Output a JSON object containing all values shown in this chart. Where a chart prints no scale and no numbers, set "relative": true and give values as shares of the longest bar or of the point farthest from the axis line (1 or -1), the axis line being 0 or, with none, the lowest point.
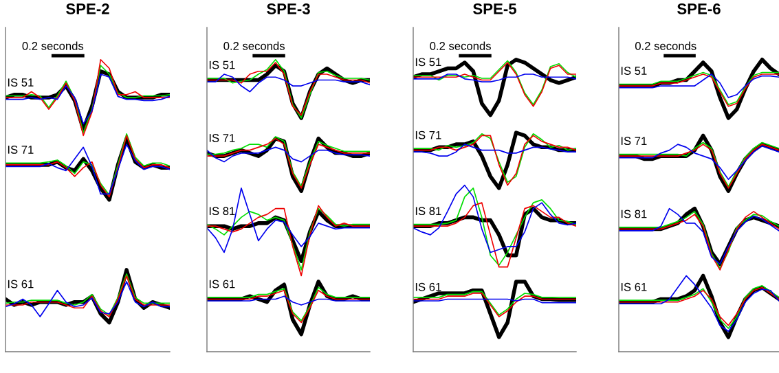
{
  "chart_data": [
    {
      "type": "line",
      "title": "SPE-2",
      "relative": true,
      "categories": [
        null,
        null,
        null,
        null,
        null,
        null,
        null,
        null,
        null,
        null,
        null,
        null,
        null,
        null,
        null,
        null,
        null,
        null,
        null,
        null
      ],
      "annotations": [
        "0.2 seconds",
        "IS 51",
        "IS 71",
        "IS 61"
      ],
      "series": [
        {
          "color": "#000000",
          "values": [
            0.87,
            0.88,
            0.88,
            0.87,
            0.87,
            0.87,
            0.88,
            0.91,
            0.86,
            0.76,
            0.84,
            0.96,
            0.95,
            0.89,
            0.87,
            0.87,
            0.87,
            0.87,
            0.88,
            0.88
          ]
        },
        {
          "color": "#00dd00",
          "values": [
            0.876,
            0.876,
            0.876,
            0.88,
            0.876,
            0.836,
            0.876,
            0.926,
            0.866,
            0.75,
            0.83,
            0.98,
            0.95,
            0.886,
            0.87,
            0.87,
            0.876,
            0.876,
            0.876,
            0.88
          ]
        },
        {
          "color": "#ee0000",
          "values": [
            0.87,
            0.87,
            0.87,
            0.89,
            0.87,
            0.83,
            0.87,
            0.92,
            0.86,
            0.74,
            0.82,
            1.0,
            0.97,
            0.88,
            0.88,
            0.89,
            0.87,
            0.87,
            0.87,
            0.87
          ]
        },
        {
          "color": "#0000ee",
          "values": [
            0.864,
            0.864,
            0.864,
            0.87,
            0.864,
            0.87,
            0.864,
            0.91,
            0.87,
            0.78,
            0.824,
            0.95,
            0.94,
            0.874,
            0.864,
            0.864,
            0.86,
            0.86,
            0.864,
            0.874
          ]
        },
        {
          "color": "#000000",
          "values": [
            0.64,
            0.64,
            0.64,
            0.64,
            0.64,
            0.64,
            0.65,
            0.63,
            0.62,
            0.66,
            0.62,
            0.56,
            0.52,
            0.64,
            0.73,
            0.65,
            0.63,
            0.64,
            0.63,
            0.63
          ]
        },
        {
          "color": "#00dd00",
          "values": [
            0.646,
            0.646,
            0.646,
            0.646,
            0.646,
            0.65,
            0.656,
            0.636,
            0.61,
            0.65,
            0.64,
            0.576,
            0.536,
            0.64,
            0.746,
            0.666,
            0.636,
            0.646,
            0.646,
            0.636
          ]
        },
        {
          "color": "#ee0000",
          "values": [
            0.64,
            0.64,
            0.64,
            0.64,
            0.64,
            0.64,
            0.65,
            0.63,
            0.6,
            0.63,
            0.65,
            0.57,
            0.53,
            0.63,
            0.74,
            0.66,
            0.63,
            0.64,
            0.64,
            0.63
          ]
        },
        {
          "color": "#0000ee",
          "values": [
            0.634,
            0.634,
            0.634,
            0.634,
            0.634,
            0.644,
            0.63,
            0.62,
            0.66,
            0.7,
            0.634,
            0.54,
            0.54,
            0.624,
            0.71,
            0.654,
            0.624,
            0.634,
            0.634,
            0.624
          ]
        },
        {
          "color": "#000000",
          "values": [
            0.18,
            0.16,
            0.17,
            0.16,
            0.17,
            0.17,
            0.17,
            0.16,
            0.17,
            0.17,
            0.19,
            0.13,
            0.1,
            0.17,
            0.28,
            0.18,
            0.15,
            0.17,
            0.16,
            0.15
          ]
        },
        {
          "color": "#00dd00",
          "values": [
            0.166,
            0.17,
            0.17,
            0.176,
            0.176,
            0.176,
            0.176,
            0.166,
            0.16,
            0.17,
            0.196,
            0.146,
            0.126,
            0.186,
            0.266,
            0.186,
            0.166,
            0.166,
            0.166,
            0.166
          ]
        },
        {
          "color": "#ee0000",
          "values": [
            0.16,
            0.16,
            0.16,
            0.17,
            0.17,
            0.17,
            0.17,
            0.16,
            0.15,
            0.15,
            0.19,
            0.14,
            0.12,
            0.18,
            0.26,
            0.18,
            0.16,
            0.16,
            0.16,
            0.16
          ]
        },
        {
          "color": "#0000ee",
          "values": [
            0.154,
            0.164,
            0.18,
            0.16,
            0.12,
            0.164,
            0.21,
            0.17,
            0.154,
            0.16,
            0.184,
            0.134,
            0.13,
            0.17,
            0.24,
            0.17,
            0.154,
            0.17,
            0.154,
            0.154
          ]
        }
      ]
    },
    {
      "type": "line",
      "title": "SPE-3",
      "relative": true,
      "categories": [
        null,
        null,
        null,
        null,
        null,
        null,
        null,
        null,
        null,
        null,
        null,
        null,
        null,
        null,
        null,
        null,
        null,
        null,
        null,
        null
      ],
      "annotations": [
        "0.2 seconds",
        "IS 51",
        "IS 71",
        "IS 81",
        "IS 61"
      ],
      "series": [
        {
          "color": "#000000",
          "values": [
            0.93,
            0.93,
            0.93,
            0.93,
            0.93,
            0.93,
            0.93,
            0.95,
            0.98,
            0.96,
            0.85,
            0.8,
            0.89,
            0.95,
            0.97,
            0.95,
            0.93,
            0.92,
            0.93,
            0.93
          ]
        },
        {
          "color": "#00dd00",
          "values": [
            0.936,
            0.936,
            0.936,
            0.92,
            0.926,
            0.93,
            0.95,
            0.966,
            1.0,
            0.96,
            0.846,
            0.8,
            0.88,
            0.956,
            0.96,
            0.946,
            0.936,
            0.936,
            0.936,
            0.93
          ]
        },
        {
          "color": "#ee0000",
          "values": [
            0.93,
            0.93,
            0.93,
            0.93,
            0.92,
            0.95,
            0.96,
            0.96,
            0.99,
            0.95,
            0.84,
            0.81,
            0.89,
            0.95,
            0.95,
            0.94,
            0.93,
            0.93,
            0.93,
            0.92
          ]
        },
        {
          "color": "#0000ee",
          "values": [
            0.924,
            0.924,
            0.95,
            0.94,
            0.91,
            0.89,
            0.92,
            0.94,
            0.94,
            0.93,
            0.91,
            0.91,
            0.92,
            0.93,
            0.93,
            0.93,
            0.924,
            0.924,
            0.924,
            0.914
          ]
        },
        {
          "color": "#000000",
          "values": [
            0.68,
            0.67,
            0.67,
            0.68,
            0.69,
            0.68,
            0.67,
            0.69,
            0.73,
            0.72,
            0.6,
            0.55,
            0.65,
            0.73,
            0.7,
            0.68,
            0.68,
            0.67,
            0.67,
            0.68
          ]
        },
        {
          "color": "#00dd00",
          "values": [
            0.676,
            0.676,
            0.68,
            0.69,
            0.696,
            0.71,
            0.71,
            0.7,
            0.736,
            0.72,
            0.616,
            0.566,
            0.65,
            0.72,
            0.706,
            0.696,
            0.686,
            0.686,
            0.686,
            0.686
          ]
        },
        {
          "color": "#ee0000",
          "values": [
            0.67,
            0.67,
            0.67,
            0.68,
            0.69,
            0.69,
            0.7,
            0.71,
            0.73,
            0.71,
            0.61,
            0.56,
            0.64,
            0.71,
            0.7,
            0.69,
            0.68,
            0.68,
            0.68,
            0.68
          ]
        },
        {
          "color": "#0000ee",
          "values": [
            0.69,
            0.664,
            0.65,
            0.67,
            0.68,
            0.68,
            0.68,
            0.69,
            0.7,
            0.69,
            0.66,
            0.65,
            0.67,
            0.69,
            0.69,
            0.68,
            0.674,
            0.674,
            0.674,
            0.67
          ]
        },
        {
          "color": "#000000",
          "values": [
            0.43,
            0.43,
            0.43,
            0.42,
            0.43,
            0.43,
            0.44,
            0.44,
            0.46,
            0.45,
            0.38,
            0.31,
            0.41,
            0.48,
            0.45,
            0.43,
            0.43,
            0.43,
            0.43,
            0.43
          ]
        },
        {
          "color": "#00dd00",
          "values": [
            0.436,
            0.42,
            0.4,
            0.43,
            0.46,
            0.48,
            0.47,
            0.45,
            0.46,
            0.45,
            0.366,
            0.28,
            0.41,
            0.49,
            0.466,
            0.436,
            0.43,
            0.436,
            0.436,
            0.436
          ]
        },
        {
          "color": "#ee0000",
          "values": [
            0.43,
            0.43,
            0.42,
            0.41,
            0.42,
            0.44,
            0.46,
            0.47,
            0.49,
            0.49,
            0.36,
            0.26,
            0.4,
            0.5,
            0.46,
            0.43,
            0.44,
            0.43,
            0.43,
            0.43
          ]
        },
        {
          "color": "#0000ee",
          "values": [
            0.424,
            0.39,
            0.34,
            0.42,
            0.56,
            0.47,
            0.38,
            0.42,
            0.45,
            0.444,
            0.4,
            0.36,
            0.394,
            0.44,
            0.43,
            0.42,
            0.424,
            0.424,
            0.424,
            0.424
          ]
        },
        {
          "color": "#000000",
          "values": [
            0.18,
            0.18,
            0.18,
            0.18,
            0.18,
            0.19,
            0.18,
            0.17,
            0.21,
            0.23,
            0.11,
            0.06,
            0.16,
            0.24,
            0.19,
            0.18,
            0.18,
            0.19,
            0.18,
            0.18
          ]
        },
        {
          "color": "#00dd00",
          "values": [
            0.186,
            0.186,
            0.186,
            0.186,
            0.186,
            0.186,
            0.196,
            0.196,
            0.206,
            0.216,
            0.136,
            0.106,
            0.156,
            0.22,
            0.196,
            0.186,
            0.186,
            0.186,
            0.186,
            0.186
          ]
        },
        {
          "color": "#ee0000",
          "values": [
            0.18,
            0.18,
            0.18,
            0.18,
            0.18,
            0.18,
            0.19,
            0.19,
            0.2,
            0.21,
            0.13,
            0.1,
            0.15,
            0.21,
            0.19,
            0.18,
            0.18,
            0.18,
            0.18,
            0.18
          ]
        },
        {
          "color": "#0000ee",
          "values": [
            0.174,
            0.174,
            0.174,
            0.174,
            0.174,
            0.174,
            0.18,
            0.18,
            0.18,
            0.19,
            0.17,
            0.16,
            0.17,
            0.18,
            0.18,
            0.174,
            0.174,
            0.174,
            0.174,
            0.174
          ]
        }
      ]
    },
    {
      "type": "line",
      "title": "SPE-5",
      "relative": true,
      "categories": [
        null,
        null,
        null,
        null,
        null,
        null,
        null,
        null,
        null,
        null,
        null,
        null,
        null,
        null,
        null,
        null,
        null,
        null,
        null,
        null
      ],
      "annotations": [
        "0.2 seconds",
        "IS 51",
        "IS 71",
        "IS 81",
        "IS 61"
      ],
      "series": [
        {
          "color": "#000000",
          "values": [
            0.94,
            0.95,
            0.95,
            0.96,
            0.97,
            0.97,
            0.99,
            0.96,
            0.85,
            0.81,
            0.86,
            0.98,
            1.0,
            0.99,
            0.97,
            0.95,
            0.93,
            0.92,
            0.93,
            0.94
          ]
        },
        {
          "color": "#00dd00",
          "values": [
            0.946,
            0.946,
            0.946,
            0.93,
            0.946,
            0.946,
            0.94,
            0.946,
            0.936,
            0.936,
            0.966,
            0.996,
            0.956,
            0.886,
            0.846,
            0.896,
            0.976,
            0.986,
            0.956,
            0.94
          ]
        },
        {
          "color": "#ee0000",
          "values": [
            0.94,
            0.94,
            0.94,
            0.94,
            0.94,
            0.94,
            0.95,
            0.94,
            0.93,
            0.93,
            0.96,
            0.99,
            0.95,
            0.88,
            0.84,
            0.89,
            0.97,
            0.98,
            0.95,
            0.95
          ]
        },
        {
          "color": "#0000ee",
          "values": [
            0.934,
            0.934,
            0.934,
            0.934,
            0.95,
            0.95,
            0.934,
            0.93,
            0.924,
            0.924,
            0.93,
            0.94,
            0.94,
            0.95,
            0.95,
            0.94,
            0.94,
            0.94,
            0.94,
            0.934
          ]
        },
        {
          "color": "#000000",
          "values": [
            0.69,
            0.69,
            0.69,
            0.7,
            0.7,
            0.71,
            0.71,
            0.72,
            0.67,
            0.6,
            0.56,
            0.64,
            0.75,
            0.74,
            0.71,
            0.7,
            0.7,
            0.69,
            0.69,
            0.69
          ]
        },
        {
          "color": "#00dd00",
          "values": [
            0.696,
            0.696,
            0.696,
            0.69,
            0.706,
            0.7,
            0.706,
            0.716,
            0.746,
            0.73,
            0.65,
            0.58,
            0.6,
            0.7,
            0.746,
            0.726,
            0.7,
            0.706,
            0.69,
            0.696
          ]
        },
        {
          "color": "#ee0000",
          "values": [
            0.69,
            0.69,
            0.69,
            0.7,
            0.7,
            0.69,
            0.7,
            0.71,
            0.74,
            0.74,
            0.64,
            0.57,
            0.61,
            0.71,
            0.74,
            0.72,
            0.71,
            0.7,
            0.7,
            0.69
          ]
        },
        {
          "color": "#0000ee",
          "values": [
            0.684,
            0.684,
            0.68,
            0.67,
            0.67,
            0.684,
            0.71,
            0.7,
            0.69,
            0.69,
            0.69,
            0.68,
            0.68,
            0.69,
            0.7,
            0.7,
            0.694,
            0.69,
            0.684,
            0.684
          ]
        },
        {
          "color": "#000000",
          "values": [
            0.43,
            0.43,
            0.43,
            0.44,
            0.44,
            0.45,
            0.46,
            0.46,
            0.45,
            0.45,
            0.4,
            0.33,
            0.33,
            0.47,
            0.49,
            0.46,
            0.45,
            0.45,
            0.44,
            0.44
          ]
        },
        {
          "color": "#00dd00",
          "values": [
            0.436,
            0.436,
            0.436,
            0.436,
            0.44,
            0.45,
            0.53,
            0.56,
            0.46,
            0.33,
            0.296,
            0.34,
            0.4,
            0.46,
            0.51,
            0.52,
            0.49,
            0.45,
            0.446,
            0.436
          ]
        },
        {
          "color": "#ee0000",
          "values": [
            0.43,
            0.43,
            0.43,
            0.43,
            0.43,
            0.44,
            0.46,
            0.5,
            0.51,
            0.4,
            0.29,
            0.29,
            0.39,
            0.49,
            0.5,
            0.48,
            0.46,
            0.46,
            0.44,
            0.43
          ]
        },
        {
          "color": "#0000ee",
          "values": [
            0.424,
            0.41,
            0.4,
            0.424,
            0.48,
            0.54,
            0.57,
            0.53,
            0.42,
            0.34,
            0.35,
            0.36,
            0.36,
            0.41,
            0.49,
            0.51,
            0.47,
            0.44,
            0.434,
            0.44
          ]
        },
        {
          "color": "#000000",
          "values": [
            0.17,
            0.18,
            0.19,
            0.2,
            0.2,
            0.2,
            0.2,
            0.21,
            0.21,
            0.13,
            0.05,
            0.1,
            0.24,
            0.24,
            0.19,
            0.18,
            0.18,
            0.177,
            0.177,
            0.177
          ]
        },
        {
          "color": "#00dd00",
          "values": [
            0.186,
            0.186,
            0.186,
            0.186,
            0.196,
            0.196,
            0.196,
            0.206,
            0.206,
            0.166,
            0.126,
            0.146,
            0.18,
            0.2,
            0.196,
            0.186,
            0.186,
            0.186,
            0.186,
            0.186
          ]
        },
        {
          "color": "#ee0000",
          "values": [
            0.18,
            0.18,
            0.18,
            0.18,
            0.19,
            0.19,
            0.19,
            0.2,
            0.2,
            0.16,
            0.12,
            0.14,
            0.17,
            0.19,
            0.19,
            0.18,
            0.18,
            0.18,
            0.18,
            0.18
          ]
        },
        {
          "color": "#0000ee",
          "values": [
            0.174,
            0.174,
            0.174,
            0.174,
            0.18,
            0.18,
            0.18,
            0.18,
            0.18,
            0.18,
            0.18,
            0.18,
            0.174,
            0.18,
            0.18,
            0.168,
            0.168,
            0.168,
            0.168,
            0.168
          ]
        }
      ]
    },
    {
      "type": "line",
      "title": "SPE-6",
      "relative": true,
      "categories": [
        null,
        null,
        null,
        null,
        null,
        null,
        null,
        null,
        null,
        null,
        null,
        null,
        null,
        null,
        null,
        null,
        null,
        null,
        null,
        null
      ],
      "annotations": [
        "0.2 seconds",
        "IS 51",
        "IS 71",
        "IS 81",
        "IS 61"
      ],
      "series": [
        {
          "color": "#000000",
          "values": [
            0.91,
            0.91,
            0.91,
            0.91,
            0.91,
            0.92,
            0.92,
            0.93,
            0.93,
            0.96,
            0.99,
            0.96,
            0.87,
            0.8,
            0.83,
            0.9,
            0.96,
            1.0,
            0.97,
            0.95
          ]
        },
        {
          "color": "#00dd00",
          "values": [
            0.916,
            0.916,
            0.916,
            0.916,
            0.916,
            0.926,
            0.926,
            0.926,
            0.936,
            0.946,
            0.956,
            0.946,
            0.896,
            0.846,
            0.856,
            0.906,
            0.946,
            0.956,
            0.956,
            0.956
          ]
        },
        {
          "color": "#ee0000",
          "values": [
            0.91,
            0.91,
            0.91,
            0.91,
            0.91,
            0.92,
            0.92,
            0.92,
            0.93,
            0.94,
            0.95,
            0.94,
            0.89,
            0.84,
            0.85,
            0.9,
            0.94,
            0.95,
            0.95,
            0.95
          ]
        },
        {
          "color": "#0000ee",
          "values": [
            0.904,
            0.904,
            0.904,
            0.904,
            0.904,
            0.91,
            0.91,
            0.91,
            0.91,
            0.91,
            0.93,
            0.95,
            0.92,
            0.87,
            0.88,
            0.91,
            0.934,
            0.944,
            0.944,
            0.94
          ]
        },
        {
          "color": "#000000",
          "values": [
            0.67,
            0.67,
            0.67,
            0.66,
            0.66,
            0.67,
            0.67,
            0.67,
            0.67,
            0.69,
            0.74,
            0.69,
            0.6,
            0.55,
            0.61,
            0.66,
            0.69,
            0.71,
            0.7,
            0.69
          ]
        },
        {
          "color": "#00dd00",
          "values": [
            0.676,
            0.676,
            0.676,
            0.676,
            0.676,
            0.676,
            0.676,
            0.676,
            0.67,
            0.696,
            0.716,
            0.696,
            0.616,
            0.566,
            0.616,
            0.666,
            0.696,
            0.716,
            0.706,
            0.696
          ]
        },
        {
          "color": "#ee0000",
          "values": [
            0.67,
            0.67,
            0.67,
            0.67,
            0.67,
            0.67,
            0.67,
            0.67,
            0.68,
            0.69,
            0.71,
            0.69,
            0.61,
            0.56,
            0.61,
            0.66,
            0.69,
            0.71,
            0.7,
            0.69
          ]
        },
        {
          "color": "#0000ee",
          "values": [
            0.664,
            0.664,
            0.664,
            0.664,
            0.664,
            0.68,
            0.69,
            0.71,
            0.7,
            0.68,
            0.67,
            0.66,
            0.63,
            0.59,
            0.62,
            0.654,
            0.684,
            0.704,
            0.694,
            0.684
          ]
        },
        {
          "color": "#000000",
          "values": [
            0.42,
            0.42,
            0.42,
            0.42,
            0.42,
            0.42,
            0.43,
            0.44,
            0.47,
            0.49,
            0.43,
            0.34,
            0.3,
            0.36,
            0.42,
            0.45,
            0.46,
            0.45,
            0.44,
            0.43
          ]
        },
        {
          "color": "#00dd00",
          "values": [
            0.426,
            0.426,
            0.426,
            0.426,
            0.426,
            0.426,
            0.436,
            0.446,
            0.46,
            0.48,
            0.436,
            0.336,
            0.286,
            0.343,
            0.426,
            0.45,
            0.47,
            0.466,
            0.446,
            0.43
          ]
        },
        {
          "color": "#ee0000",
          "values": [
            0.42,
            0.42,
            0.42,
            0.42,
            0.42,
            0.42,
            0.43,
            0.44,
            0.45,
            0.47,
            0.43,
            0.33,
            0.28,
            0.35,
            0.42,
            0.46,
            0.48,
            0.46,
            0.44,
            0.42
          ]
        },
        {
          "color": "#0000ee",
          "values": [
            0.414,
            0.414,
            0.414,
            0.414,
            0.414,
            0.43,
            0.49,
            0.47,
            0.44,
            0.44,
            0.41,
            0.324,
            0.3,
            0.36,
            0.414,
            0.444,
            0.464,
            0.454,
            0.434,
            0.414
          ]
        },
        {
          "color": "#000000",
          "values": [
            0.17,
            0.17,
            0.17,
            0.17,
            0.17,
            0.18,
            0.18,
            0.18,
            0.19,
            0.21,
            0.26,
            0.19,
            0.1,
            0.05,
            0.12,
            0.18,
            0.21,
            0.22,
            0.2,
            0.18
          ]
        },
        {
          "color": "#00dd00",
          "values": [
            0.176,
            0.176,
            0.176,
            0.176,
            0.176,
            0.176,
            0.176,
            0.176,
            0.186,
            0.196,
            0.216,
            0.17,
            0.11,
            0.08,
            0.12,
            0.186,
            0.216,
            0.226,
            0.206,
            0.186
          ]
        },
        {
          "color": "#ee0000",
          "values": [
            0.17,
            0.17,
            0.17,
            0.17,
            0.17,
            0.17,
            0.17,
            0.17,
            0.18,
            0.19,
            0.21,
            0.18,
            0.12,
            0.09,
            0.13,
            0.18,
            0.21,
            0.22,
            0.2,
            0.18
          ]
        },
        {
          "color": "#0000ee",
          "values": [
            0.164,
            0.164,
            0.164,
            0.164,
            0.164,
            0.164,
            0.18,
            0.22,
            0.26,
            0.23,
            0.19,
            0.15,
            0.09,
            0.07,
            0.11,
            0.17,
            0.2,
            0.214,
            0.21,
            0.174
          ]
        }
      ]
    }
  ]
}
